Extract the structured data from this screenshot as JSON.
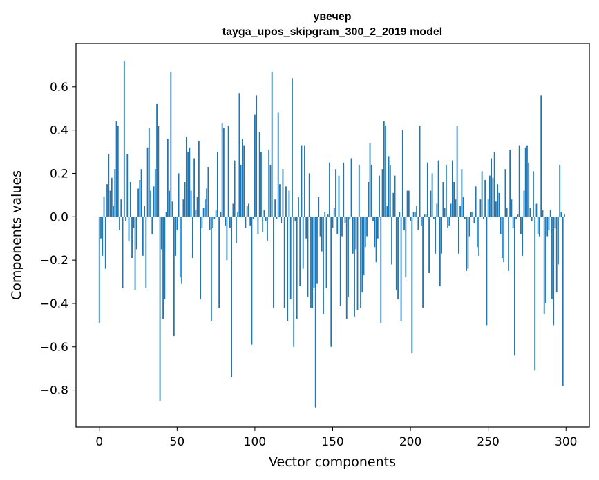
{
  "chart_data": {
    "type": "bar",
    "title": "увечер",
    "subtitle": "tayga_upos_skipgram_300_2_2019 model",
    "xlabel": "Vector components",
    "ylabel": "Components values",
    "xlim": [
      -15,
      315
    ],
    "ylim": [
      -0.97,
      0.8
    ],
    "xticks": [
      0,
      50,
      100,
      150,
      200,
      250,
      300
    ],
    "yticks": [
      -0.8,
      -0.6,
      -0.4,
      -0.2,
      0.0,
      0.2,
      0.4,
      0.6
    ],
    "ytick_labels": [
      "−0.8",
      "−0.6",
      "−0.4",
      "−0.2",
      "0.0",
      "0.2",
      "0.4",
      "0.6"
    ],
    "bar_color": "#1f77b4",
    "grid": false,
    "x": "0..299 (component index)",
    "values": [
      -0.49,
      -0.1,
      -0.18,
      0.09,
      -0.24,
      0.15,
      0.29,
      0.12,
      0.18,
      0.05,
      0.22,
      0.44,
      0.42,
      -0.06,
      0.08,
      -0.33,
      0.72,
      -0.02,
      0.29,
      -0.11,
      0.16,
      -0.19,
      -0.05,
      -0.34,
      -0.15,
      0.13,
      0.17,
      0.22,
      -0.18,
      0.05,
      -0.33,
      0.32,
      0.41,
      0.12,
      -0.08,
      0.14,
      0.22,
      0.52,
      0.42,
      -0.85,
      -0.15,
      -0.47,
      -0.38,
      0.02,
      0.36,
      0.12,
      0.67,
      0.07,
      -0.55,
      -0.18,
      -0.06,
      0.2,
      -0.28,
      -0.31,
      0.08,
      0.16,
      0.37,
      0.3,
      0.32,
      0.12,
      -0.19,
      0.27,
      0.03,
      0.09,
      0.35,
      -0.38,
      -0.05,
      0.04,
      0.08,
      0.13,
      0.23,
      -0.06,
      -0.48,
      -0.05,
      -0.01,
      0.03,
      0.3,
      -0.42,
      0.02,
      0.43,
      0.41,
      -0.04,
      -0.2,
      0.42,
      -0.05,
      -0.74,
      0.06,
      0.26,
      -0.12,
      0.02,
      0.57,
      0.24,
      0.36,
      0.33,
      -0.05,
      0.05,
      0.06,
      -0.04,
      -0.59,
      -0.01,
      0.47,
      0.56,
      -0.08,
      0.39,
      0.3,
      -0.07,
      0.03,
      -0.02,
      -0.11,
      0.31,
      0.24,
      0.67,
      -0.42,
      0.08,
      -0.01,
      0.48,
      0.15,
      -0.03,
      0.22,
      -0.42,
      0.14,
      -0.48,
      0.12,
      -0.38,
      0.64,
      -0.6,
      -0.02,
      -0.47,
      0.09,
      -0.32,
      0.33,
      -0.24,
      0.33,
      -0.1,
      -0.37,
      0.2,
      -0.42,
      -0.42,
      -0.33,
      -0.88,
      -0.31,
      0.09,
      -0.09,
      -0.16,
      -0.45,
      0.02,
      -0.33,
      0.01,
      0.25,
      -0.6,
      -0.05,
      0.04,
      0.22,
      -0.08,
      0.19,
      -0.41,
      -0.09,
      0.25,
      -0.03,
      -0.47,
      -0.37,
      -0.01,
      0.27,
      -0.17,
      -0.46,
      -0.15,
      -0.43,
      0.24,
      -0.42,
      -0.35,
      -0.27,
      -0.14,
      -0.09,
      0.16,
      0.34,
      0.24,
      -0.02,
      -0.14,
      -0.21,
      -0.1,
      0.19,
      -0.49,
      0.22,
      0.44,
      0.42,
      0.05,
      0.28,
      0.24,
      -0.22,
      0.11,
      0.19,
      -0.34,
      -0.38,
      0.02,
      -0.48,
      0.4,
      -0.06,
      -0.28,
      0.12,
      0.12,
      -0.02,
      -0.63,
      0.02,
      0.02,
      0.05,
      -0.06,
      0.42,
      -0.04,
      -0.42,
      0.01,
      0.01,
      0.25,
      -0.26,
      0.12,
      0.2,
      -0.01,
      -0.17,
      0.06,
      0.26,
      -0.32,
      -0.17,
      0.16,
      0.04,
      0.24,
      -0.05,
      -0.04,
      0.06,
      0.26,
      0.16,
      0.08,
      0.42,
      -0.17,
      0.05,
      0.22,
      0.09,
      -0.01,
      -0.25,
      -0.24,
      -0.09,
      0.02,
      0.02,
      -0.03,
      0.14,
      -0.14,
      -0.18,
      0.08,
      0.21,
      -0.01,
      0.17,
      -0.5,
      0.08,
      0.19,
      0.27,
      0.18,
      0.3,
      0.07,
      0.15,
      0.11,
      -0.08,
      -0.19,
      -0.21,
      0.22,
      0.04,
      -0.25,
      0.31,
      0.08,
      -0.05,
      -0.64,
      -0.01,
      0.01,
      0.33,
      -0.08,
      -0.18,
      0.12,
      0.32,
      0.33,
      0.25,
      0.04,
      -0.02,
      0.21,
      -0.71,
      0.06,
      -0.08,
      -0.09,
      0.56,
      0.03,
      -0.45,
      -0.4,
      -0.09,
      -0.06,
      0.03,
      -0.38,
      -0.5,
      -0.05,
      -0.35,
      -0.22,
      0.24,
      0.02,
      -0.78,
      0.01
    ]
  }
}
